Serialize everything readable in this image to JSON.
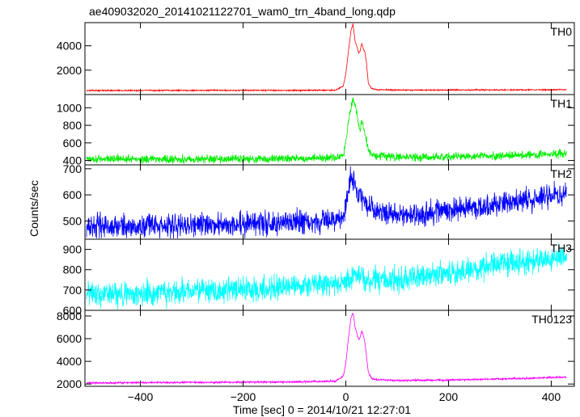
{
  "chart_data": {
    "type": "line",
    "title": "ae409032020_20141021122701_wam0_trn_4band_long.qdp",
    "xlabel": "Time [sec] 0 = 2014/10/21 12:27:01",
    "ylabel": "Counts/sec",
    "xlim": [
      -508,
      445
    ],
    "x_ticks": [
      -400,
      -200,
      0,
      200,
      400
    ],
    "panels": [
      {
        "name": "TH0",
        "color": "#ff0000",
        "ylim": [
          0,
          5900
        ],
        "y_ticks": [
          2000,
          4000
        ],
        "y_tick_labels": [
          "2000",
          "4000"
        ],
        "base_start": 330,
        "base_end": 400,
        "noise": 25,
        "x": [
          -505,
          -300,
          -100,
          -20,
          -5,
          0,
          5,
          10,
          14,
          18,
          22,
          25,
          28,
          31,
          34,
          37,
          40,
          44,
          50,
          60,
          100,
          200,
          300,
          430
        ],
        "y": [
          330,
          340,
          345,
          360,
          700,
          1700,
          3500,
          5200,
          5800,
          4400,
          3900,
          3400,
          3600,
          4200,
          3800,
          3500,
          2700,
          900,
          500,
          400,
          370,
          370,
          380,
          400
        ]
      },
      {
        "name": "TH1",
        "color": "#00ee00",
        "ylim": [
          350,
          1150
        ],
        "y_ticks": [
          400,
          600,
          800,
          1000
        ],
        "y_tick_labels": [
          "400",
          "600",
          "800",
          "1000"
        ],
        "base_start": 420,
        "base_end": 480,
        "noise": 22,
        "x": [
          -505,
          -300,
          -100,
          -20,
          -5,
          0,
          5,
          10,
          14,
          18,
          22,
          25,
          28,
          31,
          34,
          37,
          40,
          44,
          50,
          60,
          100,
          200,
          300,
          430
        ],
        "y": [
          420,
          415,
          420,
          430,
          470,
          600,
          850,
          1000,
          1100,
          1050,
          900,
          800,
          750,
          850,
          800,
          700,
          620,
          520,
          480,
          460,
          440,
          440,
          450,
          480
        ]
      },
      {
        "name": "TH2",
        "color": "#0000ff",
        "ylim": [
          430,
          715
        ],
        "y_ticks": [
          500,
          600,
          700
        ],
        "y_tick_labels": [
          "500",
          "600",
          "700"
        ],
        "base_start": 480,
        "base_end": 600,
        "noise": 22,
        "x": [
          -505,
          -300,
          -100,
          -20,
          -5,
          0,
          5,
          10,
          15,
          20,
          25,
          30,
          35,
          40,
          50,
          60,
          100,
          200,
          300,
          430
        ],
        "y": [
          480,
          482,
          495,
          500,
          520,
          560,
          620,
          665,
          650,
          630,
          610,
          600,
          575,
          560,
          540,
          530,
          520,
          540,
          565,
          600
        ]
      },
      {
        "name": "TH3",
        "color": "#00ffff",
        "ylim": [
          600,
          950
        ],
        "y_ticks": [
          600,
          700,
          800,
          900
        ],
        "y_tick_labels": [
          "600",
          "700",
          "800",
          "900"
        ],
        "base_start": 680,
        "base_end": 870,
        "noise": 30,
        "x": [
          -505,
          -300,
          -100,
          0,
          10,
          20,
          40,
          100,
          200,
          300,
          430
        ],
        "y": [
          680,
          690,
          715,
          735,
          760,
          775,
          745,
          750,
          780,
          820,
          870
        ]
      },
      {
        "name": "TH0123",
        "color": "#ff00ff",
        "ylim": [
          1800,
          8500
        ],
        "y_ticks": [
          2000,
          4000,
          6000,
          8000
        ],
        "y_tick_labels": [
          "2000",
          "4000",
          "6000",
          "8000"
        ],
        "base_start": 2100,
        "base_end": 2600,
        "noise": 40,
        "x": [
          -505,
          -300,
          -100,
          -20,
          -5,
          0,
          5,
          10,
          14,
          18,
          22,
          25,
          28,
          31,
          34,
          37,
          40,
          44,
          50,
          60,
          100,
          200,
          300,
          430
        ],
        "y": [
          2100,
          2150,
          2180,
          2250,
          2700,
          3800,
          6000,
          7800,
          8300,
          7000,
          6400,
          5900,
          6100,
          6700,
          6300,
          5700,
          4600,
          3000,
          2500,
          2400,
          2300,
          2350,
          2450,
          2600
        ]
      }
    ]
  }
}
